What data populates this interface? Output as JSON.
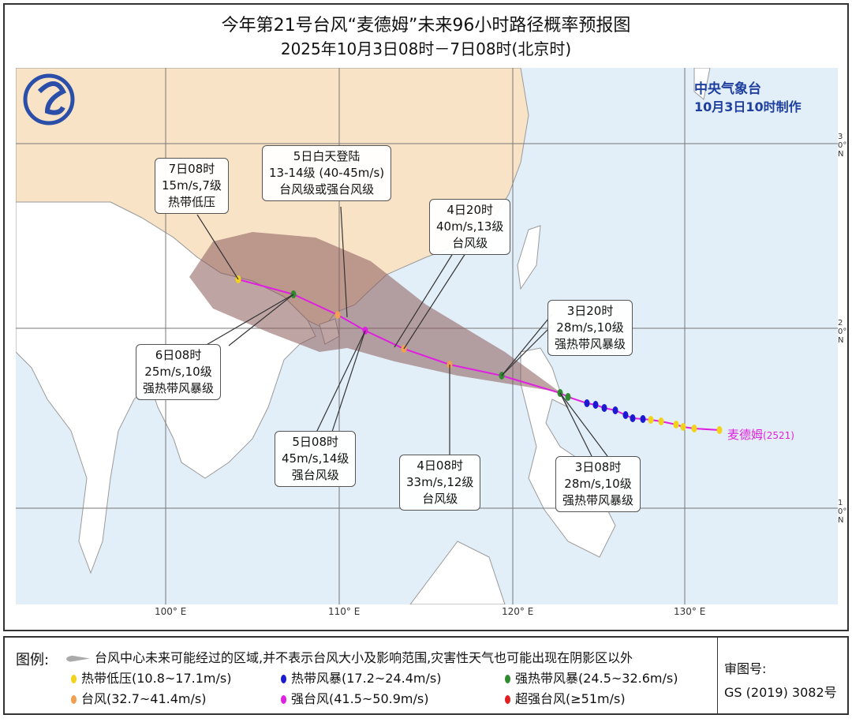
{
  "title": "今年第21号台风“麦德姆”未来96小时路径概率预报图",
  "subtitle": "2025年10月3日08时－7日08时(北京时)",
  "agency": {
    "name": "中央气象台",
    "made": "10月3日10时制作"
  },
  "typhoon_label": "麦德姆",
  "typhoon_code": "(2521)",
  "lon_ticks": [
    "100° E",
    "110° E",
    "120° E",
    "130° E"
  ],
  "lat_ticks": [
    "30° N",
    "20° N",
    "10° N"
  ],
  "boxes": [
    {
      "lines": [
        "7日08时",
        "15m/s,7级",
        "热带低压"
      ]
    },
    {
      "lines": [
        "5日白天登陆",
        "13-14级 (40-45m/s)",
        "台风级或强台风级"
      ]
    },
    {
      "lines": [
        "4日20时",
        "40m/s,13级",
        "台风级"
      ]
    },
    {
      "lines": [
        "3日20时",
        "28m/s,10级",
        "强热带风暴级"
      ]
    },
    {
      "lines": [
        "6日08时",
        "25m/s,10级",
        "强热带风暴级"
      ]
    },
    {
      "lines": [
        "5日08时",
        "45m/s,14级",
        "强台风级"
      ]
    },
    {
      "lines": [
        "4日08时",
        "33m/s,12级",
        "台风级"
      ]
    },
    {
      "lines": [
        "3日08时",
        "28m/s,10级",
        "强热带风暴级"
      ]
    }
  ],
  "legend": {
    "label": "图例:",
    "cone": "台风中心未来可能经过的区域,并不表示台风大小及影响范围,灾害性天气也可能出现在阴影区以外",
    "items": [
      {
        "text": "热带低压(10.8~17.1m/s)",
        "color": "#f2d21a"
      },
      {
        "text": "热带风暴(17.2~24.4m/s)",
        "color": "#1a1ad0"
      },
      {
        "text": "强热带风暴(24.5~32.6m/s)",
        "color": "#2e8b2e"
      },
      {
        "text": "台风(32.7~41.4m/s)",
        "color": "#f0a050"
      },
      {
        "text": "强台风(41.5~50.9m/s)",
        "color": "#e020e0"
      },
      {
        "text": "超强台风(≥51m/s)",
        "color": "#e02020"
      }
    ],
    "review_label": "审图号:",
    "review_no": "GS (2019) 3082号"
  },
  "colors": {
    "land": "#f9e3c7",
    "sea": "#e2eff8",
    "cone": "#8b5a5a",
    "track": "#e020e0"
  }
}
